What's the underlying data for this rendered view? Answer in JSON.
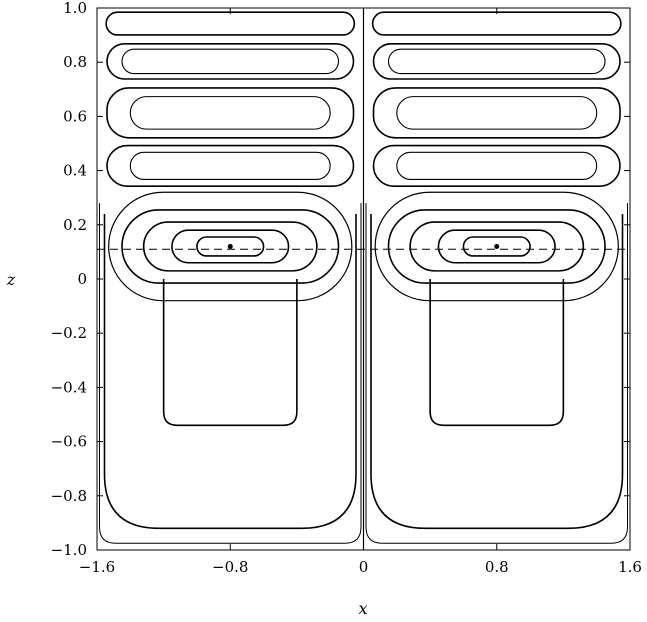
{
  "chart_data": {
    "type": "contour",
    "xlabel": "x",
    "ylabel": "z",
    "xlim": [
      -1.6,
      1.6
    ],
    "ylim": [
      -1.0,
      1.0
    ],
    "xticks": [
      -1.6,
      -0.8,
      0,
      0.8,
      1.6
    ],
    "xtick_labels": [
      "−1.6",
      "−0.8",
      "0",
      "0.8",
      "1.6"
    ],
    "yticks": [
      -1.0,
      -0.8,
      -0.6,
      -0.4,
      -0.2,
      0,
      0.2,
      0.4,
      0.6,
      0.8,
      1.0
    ],
    "ytick_labels": [
      "−1.0",
      "−0.8",
      "−0.6",
      "−0.4",
      "−0.2",
      "0",
      "0.2",
      "0.4",
      "0.6",
      "0.8",
      "1.0"
    ],
    "dashed_line_z": 0.11,
    "cell_boundaries_z": [
      0.33,
      0.5,
      0.66,
      0.82,
      1.0
    ],
    "cells": [
      {
        "x": [
          -1.6,
          0
        ],
        "z": [
          0.885,
          1.0
        ],
        "loops": [
          {
            "hw": 0.745,
            "hh": 0.042
          }
        ]
      },
      {
        "x": [
          -1.6,
          0
        ],
        "z": [
          0.728,
          0.878
        ],
        "loops": [
          {
            "hw": 0.74,
            "hh": 0.065
          },
          {
            "hw": 0.65,
            "hh": 0.045
          }
        ]
      },
      {
        "x": [
          -1.6,
          0
        ],
        "z": [
          0.51,
          0.716
        ],
        "loops": [
          {
            "hw": 0.74,
            "hh": 0.092
          },
          {
            "hw": 0.6,
            "hh": 0.06
          }
        ]
      },
      {
        "x": [
          -1.6,
          0
        ],
        "z": [
          0.335,
          0.5
        ],
        "loops": [
          {
            "hw": 0.74,
            "hh": 0.075
          },
          {
            "hw": 0.6,
            "hh": 0.05
          }
        ]
      },
      {
        "x": [
          0,
          1.6
        ],
        "z": [
          0.885,
          1.0
        ],
        "loops": [
          {
            "hw": 0.745,
            "hh": 0.042
          }
        ]
      },
      {
        "x": [
          0,
          1.6
        ],
        "z": [
          0.728,
          0.878
        ],
        "loops": [
          {
            "hw": 0.74,
            "hh": 0.065
          },
          {
            "hw": 0.65,
            "hh": 0.045
          }
        ]
      },
      {
        "x": [
          0,
          1.6
        ],
        "z": [
          0.51,
          0.716
        ],
        "loops": [
          {
            "hw": 0.74,
            "hh": 0.092
          },
          {
            "hw": 0.6,
            "hh": 0.06
          }
        ]
      },
      {
        "x": [
          0,
          1.6
        ],
        "z": [
          0.335,
          0.5
        ],
        "loops": [
          {
            "hw": 0.74,
            "hh": 0.075
          },
          {
            "hw": 0.6,
            "hh": 0.05
          }
        ]
      }
    ],
    "vortex_centers": [
      {
        "x": -0.8,
        "z": 0.12
      },
      {
        "x": 0.8,
        "z": 0.12
      }
    ],
    "vortex_loops": [
      {
        "hw": 0.2,
        "hh": 0.035
      },
      {
        "hw": 0.35,
        "hh": 0.06
      },
      {
        "hw": 0.52,
        "hh": 0.09
      },
      {
        "hw": 0.65,
        "hh": 0.135
      },
      {
        "hw": 0.73,
        "hh": 0.2
      }
    ],
    "lower_contours": [
      {
        "top": 0.0,
        "bottom": -0.54,
        "hw": 0.4,
        "corner": 0.05
      },
      {
        "top": 0.24,
        "bottom": -0.92,
        "hw": 0.755,
        "corner": 0.2
      },
      {
        "top": 0.28,
        "bottom": -0.975,
        "hw": 0.785,
        "corner": 0.06
      }
    ]
  }
}
